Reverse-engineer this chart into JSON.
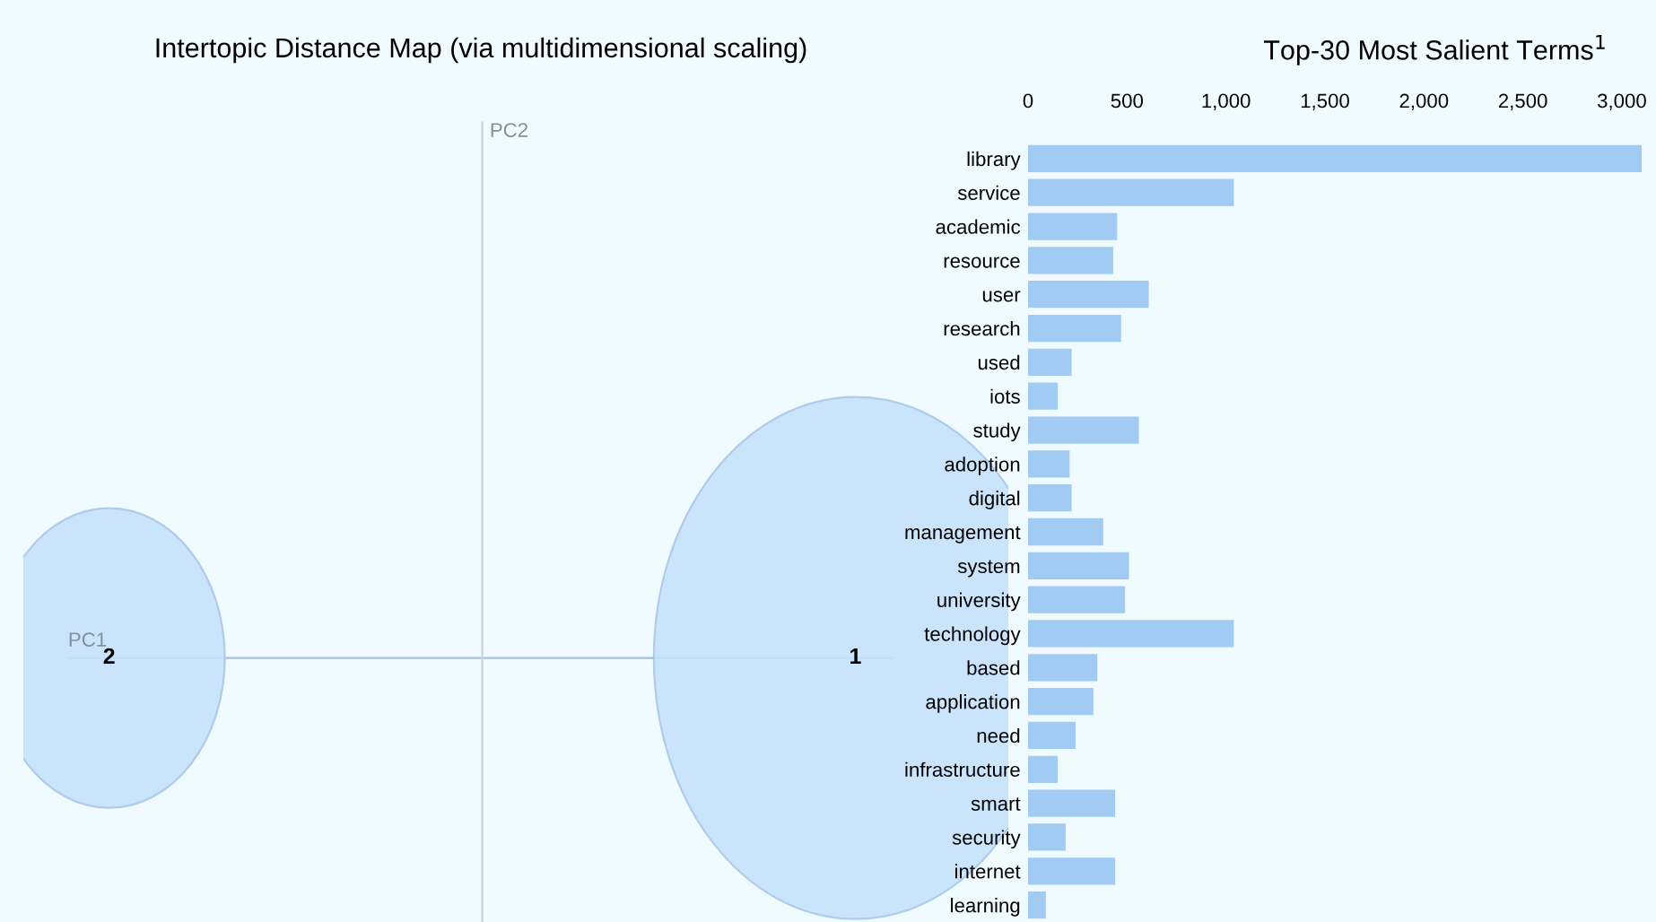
{
  "chart_data": [
    {
      "type": "other",
      "title": "Intertopic Distance Map (via multidimensional scaling)",
      "xlabel": "PC1",
      "ylabel": "PC2",
      "categories": [
        "2",
        "1"
      ],
      "color": "#c5e2fb"
    },
    {
      "type": "bar",
      "orientation": "horizontal",
      "title": "Top-30 Most Salient Terms$^{1}$",
      "color": "#9cc8f2",
      "categories": [
        "library",
        "service",
        "academic",
        "resource",
        "user",
        "research",
        "used",
        "iots",
        "study",
        "adoption",
        "digital",
        "management",
        "system",
        "university",
        "technology",
        "based",
        "application",
        "need",
        "infrastructure",
        "smart",
        "security",
        "internet",
        "learning"
      ],
      "values": [
        3100,
        1040,
        450,
        430,
        610,
        470,
        220,
        150,
        560,
        210,
        220,
        380,
        510,
        490,
        1040,
        350,
        330,
        240,
        150,
        440,
        190,
        440,
        90
      ],
      "xlim": [
        0,
        3100
      ],
      "xticks": [
        0,
        500,
        {
          "value": 1000,
          "label": "1,000"
        },
        {
          "value": 1500,
          "label": "1,500"
        },
        {
          "value": 2000,
          "label": "2,000"
        },
        {
          "value": 2500,
          "label": "2,500"
        },
        {
          "value": 3000,
          "label": "3,000"
        }
      ],
      "grid": false
    }
  ]
}
